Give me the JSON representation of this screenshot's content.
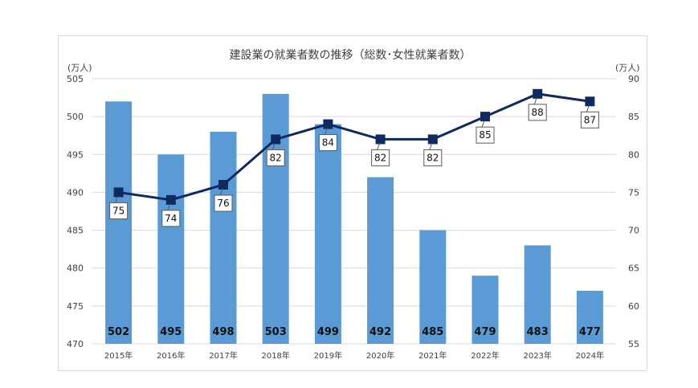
{
  "chart_data": {
    "type": "bar",
    "title": "建設業の就業者数の推移（総数･女性就業者数）",
    "categories": [
      "2015年",
      "2016年",
      "2017年",
      "2018年",
      "2019年",
      "2020年",
      "2021年",
      "2022年",
      "2023年",
      "2024年"
    ],
    "series": [
      {
        "kind": "bar",
        "axis": "left",
        "color": "#5b9bd5",
        "values": [
          502,
          495,
          498,
          503,
          499,
          492,
          485,
          479,
          483,
          477
        ]
      },
      {
        "kind": "line",
        "axis": "right",
        "color": "#0f2a5e",
        "values": [
          75,
          74,
          76,
          82,
          84,
          82,
          82,
          85,
          88,
          87
        ]
      }
    ],
    "y_left": {
      "unit": "(万人)",
      "range": [
        470,
        505
      ],
      "step": 5
    },
    "y_right": {
      "unit": "(万人)",
      "range": [
        55,
        90
      ],
      "step": 5
    },
    "grid": true
  }
}
